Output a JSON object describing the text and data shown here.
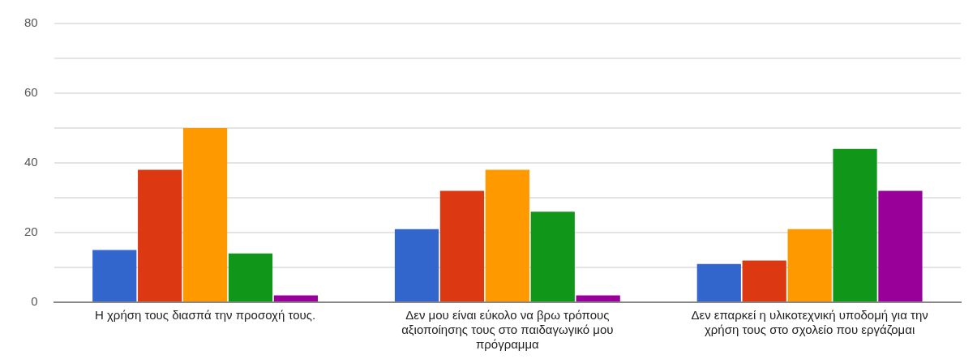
{
  "chart_data": {
    "type": "bar",
    "categories": [
      "Η χρήση τους διασπά την προσοχή τους.",
      "Δεν μου είναι εύκολο να βρω τρόπους αξιοποίησης τους στο παιδαγωγικό μου πρόγραμμα",
      "Δεν επαρκεί η υλικοτεχνική υποδομή για την χρήση τους στο σχολείο που εργάζομαι"
    ],
    "series": [
      {
        "color": "#3366cc",
        "values": [
          15,
          21,
          11
        ]
      },
      {
        "color": "#dc3912",
        "values": [
          38,
          32,
          12
        ]
      },
      {
        "color": "#ff9900",
        "values": [
          50,
          38,
          21
        ]
      },
      {
        "color": "#109618",
        "values": [
          14,
          26,
          44
        ]
      },
      {
        "color": "#990099",
        "values": [
          2,
          2,
          32
        ]
      }
    ],
    "ylim": [
      0,
      80
    ],
    "yticks": [
      0,
      {
        "value": 10,
        "label": null
      },
      20,
      {
        "value": 30,
        "label": null
      },
      40,
      {
        "value": 50,
        "label": null
      },
      60,
      {
        "value": 70,
        "label": null
      },
      80
    ],
    "grid": "y",
    "legend": false
  }
}
